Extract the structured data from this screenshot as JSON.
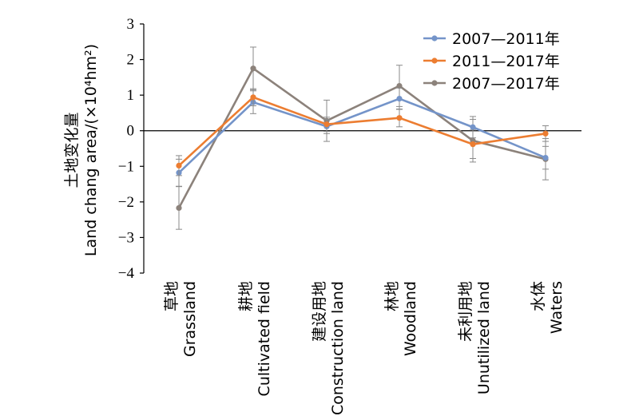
{
  "chart_data": {
    "type": "line",
    "ylabel_cn": "土地变化量",
    "ylabel_en": "Land chang area/(×10⁴hm²)",
    "ylim": [
      -4,
      3
    ],
    "yticks": [
      3,
      2,
      1,
      0,
      -1,
      -2,
      -3,
      -4
    ],
    "ytick_labels": [
      "3",
      "2",
      "1",
      "0",
      "−1",
      "−2",
      "−3",
      "−4"
    ],
    "categories": [
      {
        "cn": "草地",
        "en": "Grassland"
      },
      {
        "cn": "耕地",
        "en": "Cultivated field"
      },
      {
        "cn": "建设用地",
        "en": "Construction land"
      },
      {
        "cn": "林地",
        "en": "Woodland"
      },
      {
        "cn": "未利用地",
        "en": "Unutilized land"
      },
      {
        "cn": "水体",
        "en": "Waters"
      }
    ],
    "legend_position": "top-right",
    "series": [
      {
        "name": "2007—2011年",
        "color": "#7494c9",
        "values": [
          -1.18,
          0.8,
          0.12,
          0.9,
          0.1,
          -0.76
        ],
        "errors": [
          0.38,
          0.32,
          0.2,
          0.3,
          0.3,
          0.32
        ]
      },
      {
        "name": "2011—2017年",
        "color": "#ec7d31",
        "values": [
          -0.98,
          0.94,
          0.18,
          0.36,
          -0.38,
          -0.08
        ],
        "errors": [
          0.28,
          0.24,
          0.2,
          0.25,
          0.4,
          0.22
        ]
      },
      {
        "name": "2007—2017年",
        "color": "#8c827b",
        "values": [
          -2.17,
          1.75,
          0.28,
          1.26,
          -0.28,
          -0.8
        ],
        "errors": [
          0.6,
          0.6,
          0.58,
          0.58,
          0.6,
          0.58
        ]
      }
    ]
  }
}
